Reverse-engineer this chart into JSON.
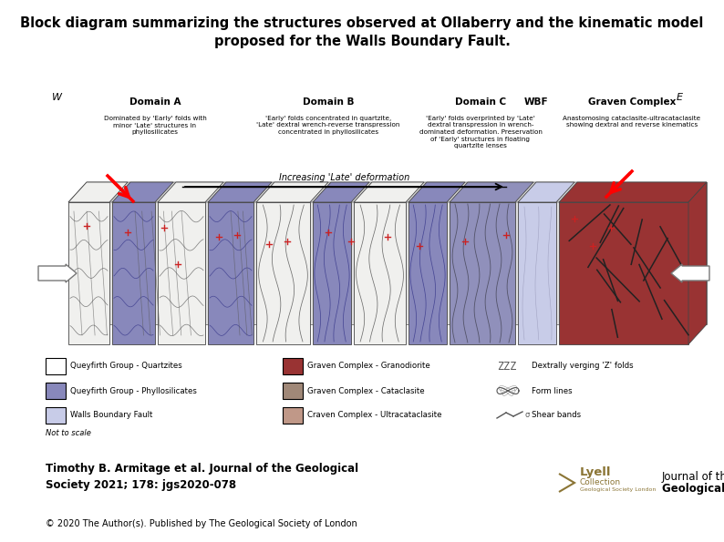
{
  "title_line1": "Block diagram summarizing the structures observed at Ollaberry and the kinematic model",
  "title_line2": "proposed for the Walls Boundary Fault.",
  "title_fontsize": 10.5,
  "author_text": "Timothy B. Armitage et al. Journal of the Geological\nSociety 2021; 178: jgs2020-078",
  "author_fontsize": 8.5,
  "copyright_text": "© 2020 The Author(s). Published by The Geological Society of London",
  "copyright_fontsize": 7.0,
  "lyell_color": "#8b7535",
  "legend_items_col1": [
    {
      "label": "Queyfirth Group - Quartzites",
      "fc": "#ffffff",
      "ec": "#000000"
    },
    {
      "label": "Queyfirth Group - Phyllosilicates",
      "fc": "#8888bb",
      "ec": "#000000"
    },
    {
      "label": "Walls Boundary Fault",
      "fc": "#c8cce8",
      "ec": "#000000"
    }
  ],
  "legend_items_col2": [
    {
      "label": "Graven Complex - Granodiorite",
      "fc": "#993333",
      "ec": "#000000"
    },
    {
      "label": "Graven Complex - Cataclasite",
      "fc": "#a08878",
      "ec": "#000000"
    },
    {
      "label": "Craven Complex - Ultracataclasite",
      "fc": "#c09888",
      "ec": "#000000"
    }
  ],
  "legend_items_col3": [
    {
      "label": "Dextrally verging 'Z' folds",
      "type": "zzz"
    },
    {
      "label": "Form lines",
      "type": "form"
    },
    {
      "label": "Shear bands",
      "type": "shear"
    }
  ],
  "not_to_scale": "Not to scale",
  "domain_labels": [
    "Domain A",
    "Domain B",
    "Domain C",
    "WBF",
    "Graven Complex"
  ],
  "domain_descs": [
    "Dominated by 'Early' folds with\nminor 'Late' structures in\nphyllosilicates",
    "'Early' folds concentrated in quartzite,\n'Late' dextral wrench-reverse transpression\nconcentrated in phyllosilicates",
    "'Early' folds overprinted by 'Late'\ndextral transpression in wrench-\ndominated deformation. Preservation\nof 'Early' structures in floating\nquartzite lenses",
    "",
    "Anastomosing cataclasite-ultracataclasite\nshowing dextral and reverse kinematics"
  ],
  "arrow_label": "Increasing 'Late' deformation",
  "compass_w": "W",
  "compass_e": "E",
  "background_color": "#ffffff",
  "fig_width": 7.94,
  "fig_height": 5.95,
  "dpi": 100
}
